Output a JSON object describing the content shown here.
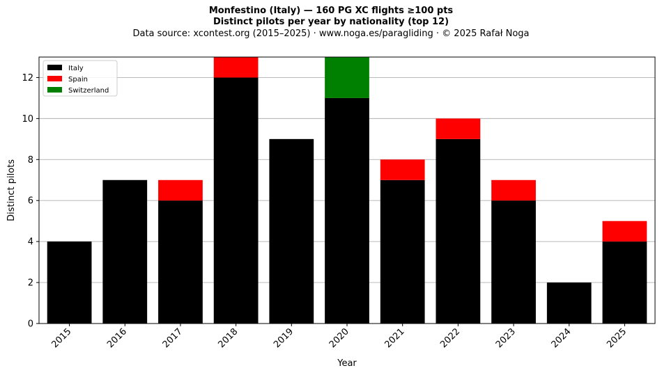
{
  "title": "Monfestino (Italy)  —  160 PG XC flights ≥100 pts",
  "subtitle": "Distinct pilots per year by nationality (top 12)",
  "source": "Data source: xcontest.org (2015–2025)  ·  www.noga.es/paragliding  ·  © 2025 Rafał Noga",
  "chart_data": {
    "type": "bar",
    "stacked": true,
    "categories": [
      "2015",
      "2016",
      "2017",
      "2018",
      "2019",
      "2020",
      "2021",
      "2022",
      "2023",
      "2024",
      "2025"
    ],
    "series": [
      {
        "name": "Italy",
        "color": "#000000",
        "values": [
          4,
          7,
          6,
          12,
          9,
          11,
          7,
          9,
          6,
          2,
          4
        ]
      },
      {
        "name": "Spain",
        "color": "#ff0000",
        "values": [
          0,
          0,
          1,
          1,
          0,
          0,
          1,
          1,
          1,
          0,
          1
        ]
      },
      {
        "name": "Switzerland",
        "color": "#008000",
        "values": [
          0,
          0,
          0,
          0,
          0,
          2,
          0,
          0,
          0,
          0,
          0
        ]
      }
    ],
    "xlabel": "Year",
    "ylabel": "Distinct pilots",
    "ylim": [
      0,
      13
    ],
    "yticks": [
      0,
      2,
      4,
      6,
      8,
      10,
      12
    ],
    "grid": "y",
    "legend": "upper-left"
  }
}
